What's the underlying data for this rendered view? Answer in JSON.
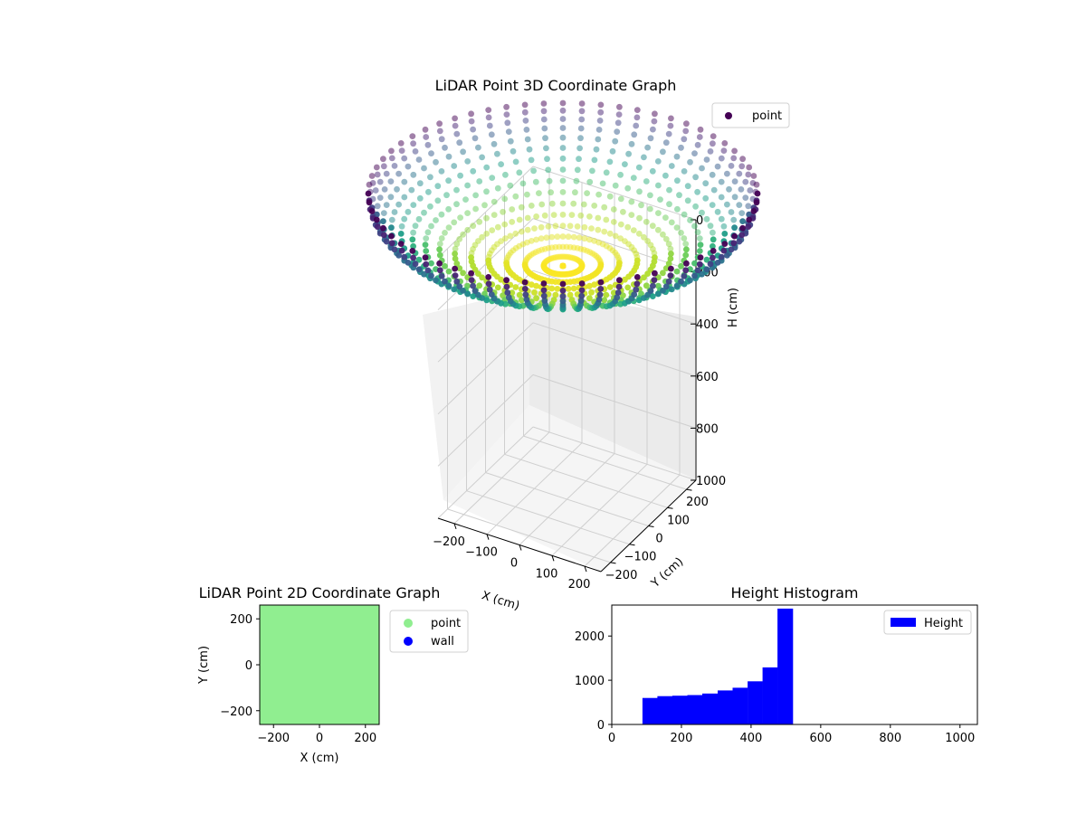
{
  "chart_data": [
    {
      "type": "scatter",
      "projection": "3d",
      "title": "LiDAR Point 3D Coordinate Graph",
      "xlabel": "X (cm)",
      "ylabel": "Y (cm)",
      "zlabel": "H (cm)",
      "x_ticks": [
        -200,
        -100,
        0,
        100,
        200
      ],
      "y_ticks": [
        -200,
        -100,
        0,
        100,
        200
      ],
      "z_ticks": [
        0,
        200,
        400,
        600,
        800,
        1000
      ],
      "xlim": [
        -250,
        250
      ],
      "ylim": [
        -250,
        250
      ],
      "zlim": [
        0,
        1000
      ],
      "z_inverted": true,
      "grid": true,
      "legend": {
        "entries": [
          "point"
        ],
        "placement": "upper-right"
      },
      "colormap": "viridis",
      "series": [
        {
          "name": "point",
          "shape": "hemisphere bowl, 64 azimuth columns of points, rim at H=0, bottom at H≈520",
          "radius": 250,
          "h_min": 0,
          "h_max": 520,
          "marker_color": "#440154"
        }
      ]
    },
    {
      "type": "scatter",
      "title": "LiDAR Point 2D Coordinate Graph",
      "xlabel": "X (cm)",
      "ylabel": "Y (cm)",
      "x_ticks": [
        -200,
        0,
        200
      ],
      "y_ticks": [
        -200,
        0,
        200
      ],
      "xlim": [
        -260,
        260
      ],
      "ylim": [
        -260,
        260
      ],
      "legend": {
        "entries": [
          "point",
          "wall"
        ],
        "placement": "outside-right"
      },
      "series": [
        {
          "name": "point",
          "color": "#90ee90",
          "coverage": "fills -250..250 in X and Y"
        },
        {
          "name": "wall",
          "color": "#0000ff"
        }
      ]
    },
    {
      "type": "bar",
      "subtype": "histogram",
      "title": "Height Histogram",
      "xlabel": "",
      "ylabel": "",
      "x_ticks": [
        0,
        200,
        400,
        600,
        800,
        1000
      ],
      "y_ticks": [
        0,
        1000,
        2000
      ],
      "xlim": [
        0,
        1050
      ],
      "ylim": [
        0,
        2700
      ],
      "legend": {
        "entries": [
          "Height"
        ],
        "placement": "upper-right"
      },
      "series": [
        {
          "name": "Height",
          "color": "#0000ff",
          "bin_edges": [
            88,
            131,
            174,
            217,
            260,
            304,
            347,
            390,
            433,
            476,
            520
          ],
          "values": [
            600,
            640,
            650,
            665,
            700,
            770,
            830,
            975,
            1290,
            2620
          ]
        }
      ]
    }
  ]
}
